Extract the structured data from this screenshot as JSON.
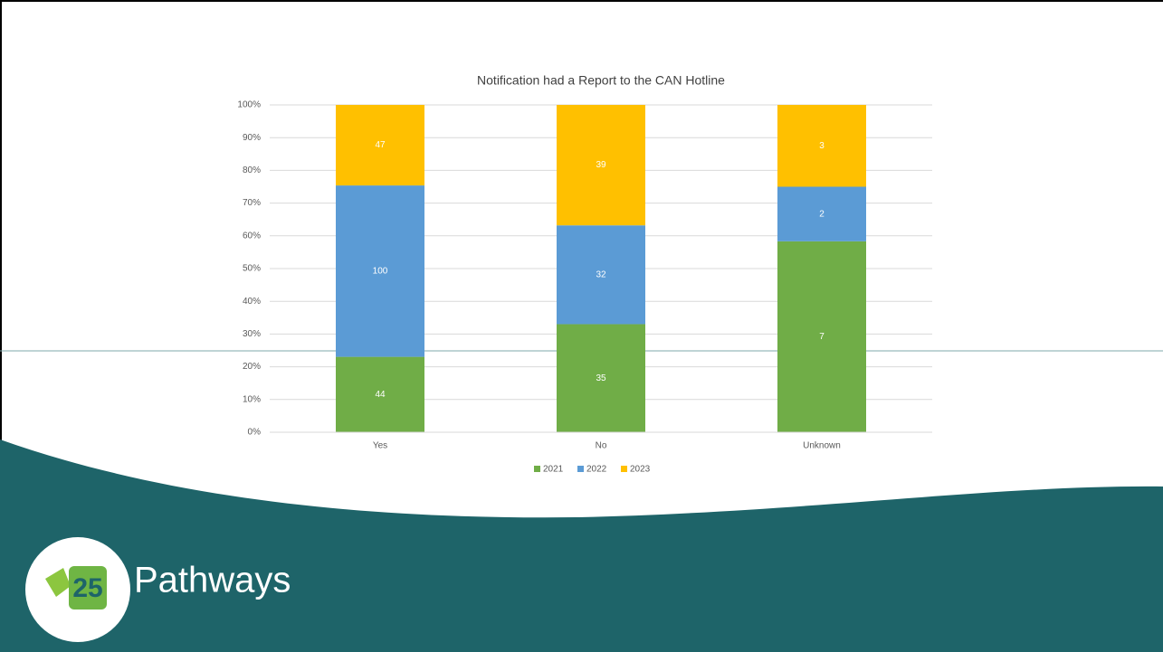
{
  "chart_data": {
    "type": "bar",
    "stacked": "percent",
    "title": "Notification had a Report to the CAN Hotline",
    "categories": [
      "Yes",
      "No",
      "Unknown"
    ],
    "series": [
      {
        "name": "2021",
        "color": "#70ad47",
        "values": [
          44,
          35,
          7
        ]
      },
      {
        "name": "2022",
        "color": "#5b9bd5",
        "values": [
          100,
          32,
          2
        ]
      },
      {
        "name": "2023",
        "color": "#ffc000",
        "values": [
          47,
          39,
          3
        ]
      }
    ],
    "ylim": [
      0,
      100
    ],
    "yticks": [
      {
        "value": 0,
        "label": "0%"
      },
      {
        "value": 10,
        "label": "10%"
      },
      {
        "value": 20,
        "label": "20%"
      },
      {
        "value": 30,
        "label": "30%"
      },
      {
        "value": 40,
        "label": "40%"
      },
      {
        "value": 50,
        "label": "50%"
      },
      {
        "value": 60,
        "label": "60%"
      },
      {
        "value": 70,
        "label": "70%"
      },
      {
        "value": 80,
        "label": "80%"
      },
      {
        "value": 90,
        "label": "90%"
      },
      {
        "value": 100,
        "label": "100%"
      }
    ],
    "grid": true,
    "legend": "bottom"
  },
  "slide": {
    "brand": "Pathways",
    "logo_text": "25"
  }
}
